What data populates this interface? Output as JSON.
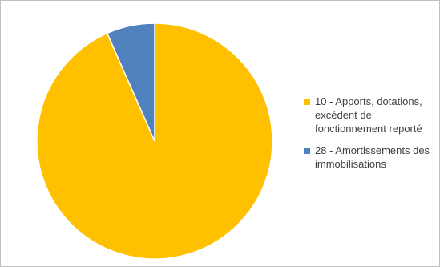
{
  "chart_data": {
    "type": "pie",
    "title": "",
    "legend_position": "right",
    "slices": [
      {
        "label": "10 - Apports, dotations, excédent de fonctionnement reporté",
        "value": 93.4,
        "color": "#FFC000"
      },
      {
        "label": "28 - Amortissements des immobilisations",
        "value": 6.6,
        "color": "#4F81BD"
      }
    ]
  }
}
